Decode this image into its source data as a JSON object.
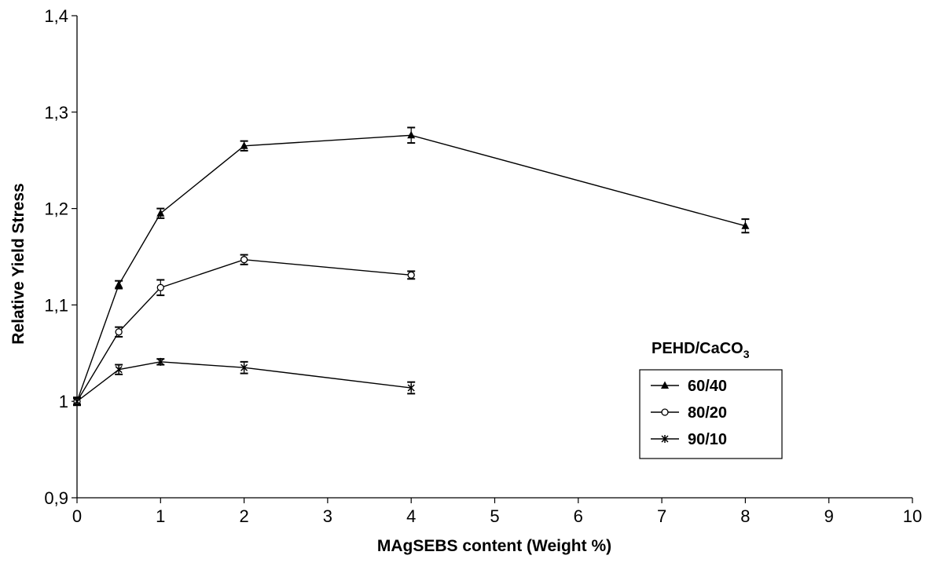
{
  "chart_data": {
    "type": "line",
    "title": "",
    "xlabel": "MAgSEBS content (Weight %)",
    "ylabel": "Relative Yield Stress",
    "xlim": [
      0,
      10
    ],
    "ylim": [
      0.9,
      1.4
    ],
    "x_ticks": [
      0,
      1,
      2,
      3,
      4,
      5,
      6,
      7,
      8,
      9,
      10
    ],
    "x_tick_labels": [
      "0",
      "1",
      "2",
      "3",
      "4",
      "5",
      "6",
      "7",
      "8",
      "9",
      "10"
    ],
    "y_ticks": [
      0.9,
      1.0,
      1.1,
      1.2,
      1.3,
      1.4
    ],
    "y_tick_labels": [
      "0,9",
      "1",
      "1,1",
      "1,2",
      "1,3",
      "1,4"
    ],
    "grid": false,
    "legend": {
      "title_main": "PEHD/CaCO",
      "title_sub": "3",
      "position": "right"
    },
    "series": [
      {
        "name": "60/40",
        "marker": "triangle",
        "x": [
          0,
          0.5,
          1,
          2,
          4,
          8
        ],
        "y": [
          1.0,
          1.121,
          1.195,
          1.265,
          1.276,
          1.182
        ],
        "err": [
          0.004,
          0.004,
          0.005,
          0.005,
          0.008,
          0.007
        ]
      },
      {
        "name": "80/20",
        "marker": "circle",
        "x": [
          0,
          0.5,
          1,
          2,
          4
        ],
        "y": [
          1.0,
          1.072,
          1.118,
          1.147,
          1.131
        ],
        "err": [
          0.004,
          0.005,
          0.008,
          0.005,
          0.004
        ]
      },
      {
        "name": "90/10",
        "marker": "star",
        "x": [
          0,
          0.5,
          1,
          2,
          4
        ],
        "y": [
          1.0,
          1.033,
          1.041,
          1.035,
          1.014
        ],
        "err": [
          0.003,
          0.005,
          0.003,
          0.006,
          0.006
        ]
      }
    ]
  }
}
